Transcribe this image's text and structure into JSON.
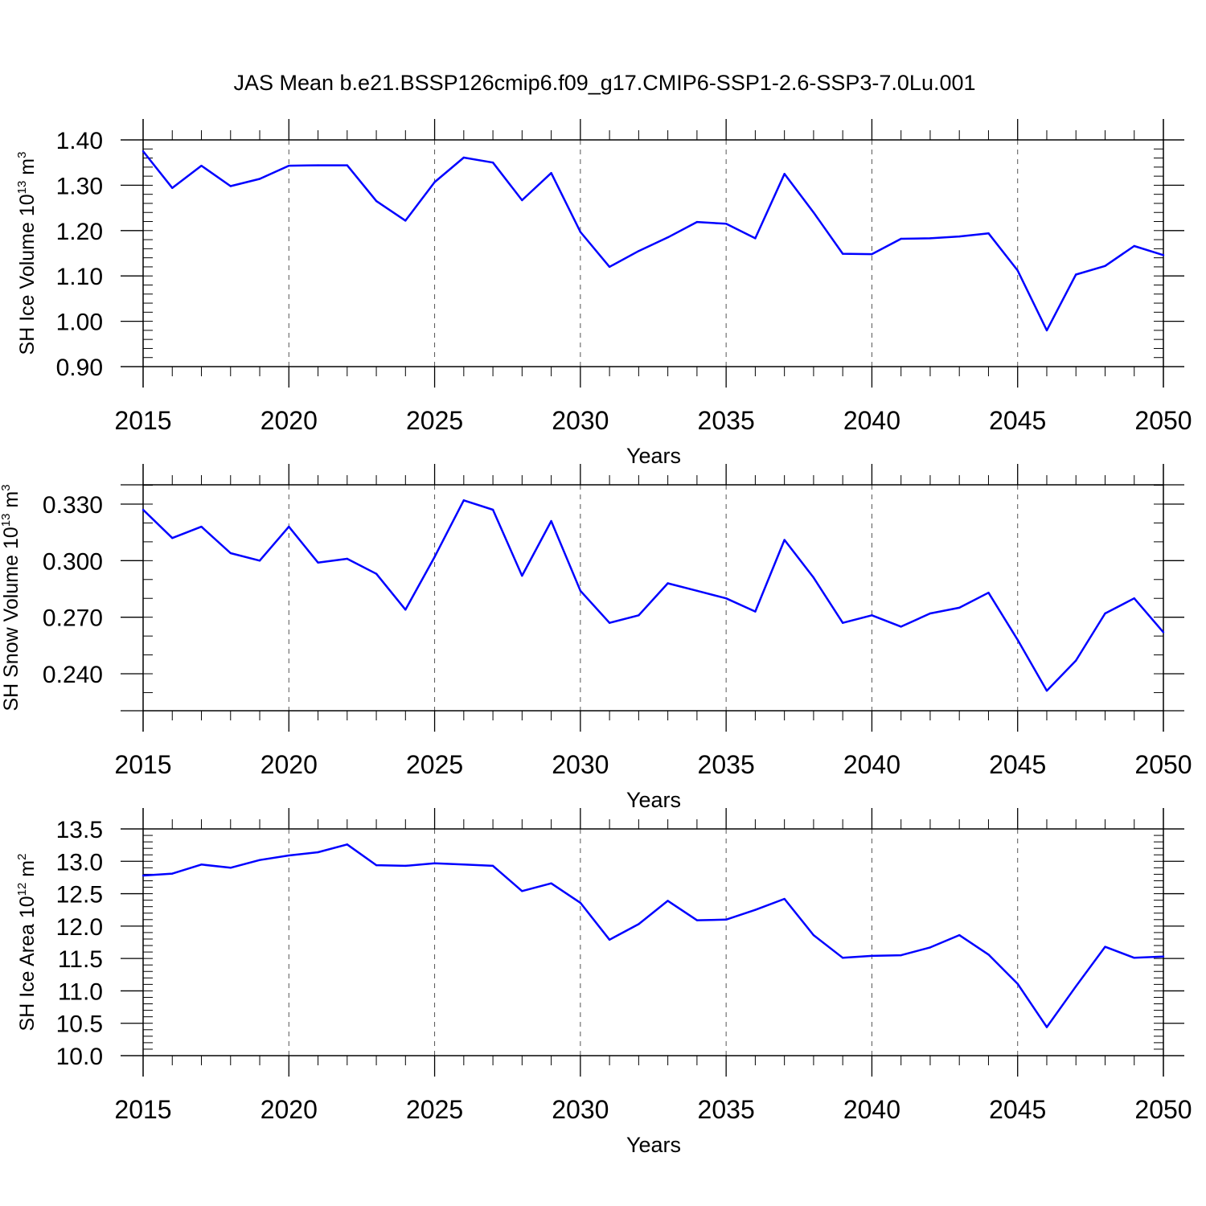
{
  "title": "JAS Mean b.e21.BSSP126cmip6.f09_g17.CMIP6-SSP1-2.6-SSP3-7.0Lu.001",
  "line_color": "#0000ff",
  "chart_data": [
    {
      "type": "line",
      "xlabel": "Years",
      "ylabel_main": "SH Ice Volume 10",
      "ylabel_exp": "13",
      "ylabel_unit": " m",
      "ylabel_unit_exp": "3",
      "xlim": [
        2015,
        2050
      ],
      "ylim": [
        0.9,
        1.4
      ],
      "x_ticks": [
        "2015",
        "2020",
        "2025",
        "2030",
        "2035",
        "2040",
        "2045",
        "2050"
      ],
      "y_ticks": [
        "0.90",
        "1.00",
        "1.10",
        "1.20",
        "1.30",
        "1.40"
      ],
      "y_minor_step": 0.02,
      "grid": "vertical-dashed",
      "x": [
        2015,
        2016,
        2017,
        2018,
        2019,
        2020,
        2021,
        2022,
        2023,
        2024,
        2025,
        2026,
        2027,
        2028,
        2029,
        2030,
        2031,
        2032,
        2033,
        2034,
        2035,
        2036,
        2037,
        2038,
        2039,
        2040,
        2041,
        2042,
        2043,
        2044,
        2045,
        2046,
        2047,
        2048,
        2049,
        2050
      ],
      "values": [
        1.375,
        1.294,
        1.343,
        1.298,
        1.314,
        1.343,
        1.344,
        1.344,
        1.265,
        1.222,
        1.307,
        1.361,
        1.35,
        1.267,
        1.327,
        1.197,
        1.12,
        1.155,
        1.185,
        1.219,
        1.215,
        1.183,
        1.325,
        1.24,
        1.149,
        1.148,
        1.182,
        1.183,
        1.187,
        1.194,
        1.112,
        0.98,
        1.103,
        1.122,
        1.166,
        1.146
      ]
    },
    {
      "type": "line",
      "xlabel": "Years",
      "ylabel_main": "SH Snow Volume 10",
      "ylabel_exp": "13",
      "ylabel_unit": " m",
      "ylabel_unit_exp": "3",
      "xlim": [
        2015,
        2050
      ],
      "ylim": [
        0.22,
        0.34
      ],
      "x_ticks": [
        "2015",
        "2020",
        "2025",
        "2030",
        "2035",
        "2040",
        "2045",
        "2050"
      ],
      "y_ticks": [
        "0.240",
        "0.270",
        "0.300",
        "0.330"
      ],
      "y_minor_step": 0.01,
      "grid": "vertical-dashed",
      "x": [
        2015,
        2016,
        2017,
        2018,
        2019,
        2020,
        2021,
        2022,
        2023,
        2024,
        2025,
        2026,
        2027,
        2028,
        2029,
        2030,
        2031,
        2032,
        2033,
        2034,
        2035,
        2036,
        2037,
        2038,
        2039,
        2040,
        2041,
        2042,
        2043,
        2044,
        2045,
        2046,
        2047,
        2048,
        2049,
        2050
      ],
      "values": [
        0.327,
        0.312,
        0.318,
        0.304,
        0.3,
        0.318,
        0.299,
        0.301,
        0.293,
        0.274,
        0.302,
        0.332,
        0.327,
        0.292,
        0.321,
        0.284,
        0.267,
        0.271,
        0.288,
        0.284,
        0.28,
        0.273,
        0.311,
        0.291,
        0.267,
        0.271,
        0.265,
        0.272,
        0.275,
        0.283,
        0.258,
        0.231,
        0.247,
        0.272,
        0.28,
        0.262
      ]
    },
    {
      "type": "line",
      "xlabel": "Years",
      "ylabel_main": "SH Ice Area 10",
      "ylabel_exp": "12",
      "ylabel_unit": " m",
      "ylabel_unit_exp": "2",
      "xlim": [
        2015,
        2050
      ],
      "ylim": [
        10.0,
        13.5
      ],
      "x_ticks": [
        "2015",
        "2020",
        "2025",
        "2030",
        "2035",
        "2040",
        "2045",
        "2050"
      ],
      "y_ticks": [
        "10.0",
        "10.5",
        "11.0",
        "11.5",
        "12.0",
        "12.5",
        "13.0",
        "13.5"
      ],
      "y_minor_step": 0.1,
      "grid": "vertical-dashed",
      "x": [
        2015,
        2016,
        2017,
        2018,
        2019,
        2020,
        2021,
        2022,
        2023,
        2024,
        2025,
        2026,
        2027,
        2028,
        2029,
        2030,
        2031,
        2032,
        2033,
        2034,
        2035,
        2036,
        2037,
        2038,
        2039,
        2040,
        2041,
        2042,
        2043,
        2044,
        2045,
        2046,
        2047,
        2048,
        2049,
        2050
      ],
      "values": [
        12.78,
        12.81,
        12.95,
        12.9,
        13.02,
        13.09,
        13.14,
        13.26,
        12.94,
        12.93,
        12.97,
        12.95,
        12.93,
        12.54,
        12.66,
        12.36,
        11.79,
        12.03,
        12.39,
        12.09,
        12.1,
        12.25,
        12.42,
        11.86,
        11.51,
        11.54,
        11.55,
        11.67,
        11.86,
        11.56,
        11.11,
        10.44,
        11.07,
        11.68,
        11.51,
        11.53
      ]
    }
  ]
}
